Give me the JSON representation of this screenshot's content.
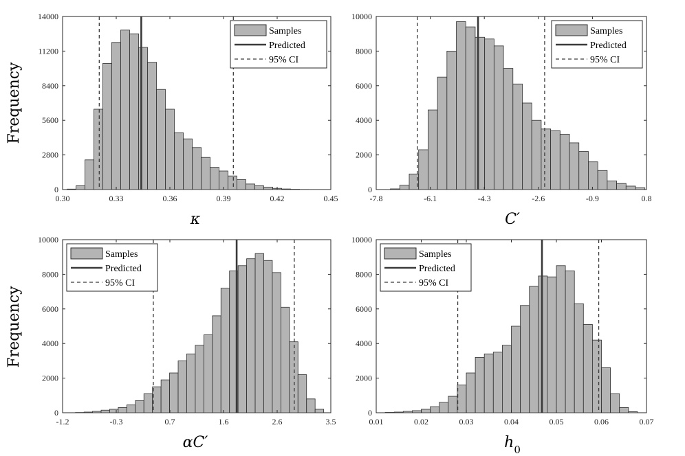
{
  "figure_ylabel": "Frequency",
  "legend_labels": {
    "samples": "Samples",
    "predicted": "Predicted",
    "ci": "95% CI"
  },
  "colors": {
    "bar": "#b4b4b4",
    "bar_edge": "#2d2d2d",
    "predicted_line": "#3a3a3a",
    "ci_line": "#3a3a3a"
  },
  "chart_data": [
    {
      "type": "bar",
      "xlabel": "κ",
      "xlim": [
        0.3,
        0.45
      ],
      "ylim": [
        0,
        14000
      ],
      "xticks": [
        "0.30",
        "0.33",
        "0.36",
        "0.39",
        "0.42",
        "0.45"
      ],
      "yticks": [
        "0",
        "2800",
        "5600",
        "8400",
        "11200",
        "14000"
      ],
      "ylabel": "Frequency",
      "legend_position": "top-right",
      "predicted": 0.344,
      "ci": [
        0.3205,
        0.3955
      ],
      "bins": [
        [
          0.3025,
          0.3075,
          40
        ],
        [
          0.3075,
          0.3125,
          300
        ],
        [
          0.3125,
          0.3175,
          2400
        ],
        [
          0.3175,
          0.3225,
          6500
        ],
        [
          0.3225,
          0.3275,
          10200
        ],
        [
          0.3275,
          0.3325,
          11900
        ],
        [
          0.3325,
          0.3375,
          12900
        ],
        [
          0.3375,
          0.3425,
          12600
        ],
        [
          0.3425,
          0.3475,
          11500
        ],
        [
          0.3475,
          0.3525,
          10300
        ],
        [
          0.3525,
          0.3575,
          8100
        ],
        [
          0.3575,
          0.3625,
          6500
        ],
        [
          0.3625,
          0.3675,
          4600
        ],
        [
          0.3675,
          0.3725,
          4100
        ],
        [
          0.3725,
          0.3775,
          3400
        ],
        [
          0.3775,
          0.3825,
          2600
        ],
        [
          0.3825,
          0.3875,
          1800
        ],
        [
          0.3875,
          0.3925,
          1500
        ],
        [
          0.3925,
          0.3975,
          1100
        ],
        [
          0.3975,
          0.4025,
          800
        ],
        [
          0.4025,
          0.4075,
          450
        ],
        [
          0.4075,
          0.4125,
          300
        ],
        [
          0.4125,
          0.4175,
          200
        ],
        [
          0.4175,
          0.4225,
          100
        ],
        [
          0.4225,
          0.4275,
          50
        ],
        [
          0.4275,
          0.4325,
          25
        ],
        [
          0.4325,
          0.4375,
          10
        ]
      ]
    },
    {
      "type": "bar",
      "xlabel": "C′",
      "xlim": [
        -7.8,
        0.8
      ],
      "ylim": [
        0,
        10000
      ],
      "xticks": [
        "-7.8",
        "-6.1",
        "-4.3",
        "-2.6",
        "-0.9",
        "0.8"
      ],
      "yticks": [
        "0",
        "2000",
        "4000",
        "6000",
        "8000",
        "10000"
      ],
      "legend_position": "top-right",
      "predicted": -4.56,
      "ci": [
        -6.49,
        -2.44
      ],
      "bins": [
        [
          -7.35,
          -7.05,
          40
        ],
        [
          -7.05,
          -6.75,
          250
        ],
        [
          -6.75,
          -6.45,
          900
        ],
        [
          -6.45,
          -6.15,
          2300
        ],
        [
          -6.15,
          -5.85,
          4600
        ],
        [
          -5.85,
          -5.55,
          6500
        ],
        [
          -5.55,
          -5.25,
          8000
        ],
        [
          -5.25,
          -4.95,
          9700
        ],
        [
          -4.95,
          -4.65,
          9400
        ],
        [
          -4.65,
          -4.35,
          8800
        ],
        [
          -4.35,
          -4.05,
          8700
        ],
        [
          -4.05,
          -3.75,
          8300
        ],
        [
          -3.75,
          -3.45,
          7000
        ],
        [
          -3.45,
          -3.15,
          6100
        ],
        [
          -3.15,
          -2.85,
          5000
        ],
        [
          -2.85,
          -2.55,
          4000
        ],
        [
          -2.55,
          -2.25,
          3500
        ],
        [
          -2.25,
          -1.95,
          3400
        ],
        [
          -1.95,
          -1.65,
          3200
        ],
        [
          -1.65,
          -1.35,
          2700
        ],
        [
          -1.35,
          -1.05,
          2200
        ],
        [
          -1.05,
          -0.75,
          1600
        ],
        [
          -0.75,
          -0.45,
          1100
        ],
        [
          -0.45,
          -0.15,
          500
        ],
        [
          -0.15,
          0.15,
          350
        ],
        [
          0.15,
          0.45,
          200
        ],
        [
          0.45,
          0.75,
          100
        ]
      ]
    },
    {
      "type": "bar",
      "xlabel": "αC′",
      "xlim": [
        -1.2,
        3.5
      ],
      "ylim": [
        0,
        10000
      ],
      "xticks": [
        "-1.2",
        "-0.3",
        "0.7",
        "1.6",
        "2.6",
        "3.5"
      ],
      "yticks": [
        "0",
        "2000",
        "4000",
        "6000",
        "8000",
        "10000"
      ],
      "ylabel": "Frequency",
      "legend_position": "top-left",
      "predicted": 1.85,
      "ci": [
        0.39,
        2.86
      ],
      "bins": [
        [
          -0.975,
          -0.825,
          15
        ],
        [
          -0.825,
          -0.675,
          40
        ],
        [
          -0.675,
          -0.525,
          80
        ],
        [
          -0.525,
          -0.375,
          150
        ],
        [
          -0.375,
          -0.225,
          200
        ],
        [
          -0.225,
          -0.075,
          300
        ],
        [
          -0.075,
          0.075,
          450
        ],
        [
          0.075,
          0.225,
          700
        ],
        [
          0.225,
          0.375,
          1100
        ],
        [
          0.375,
          0.525,
          1500
        ],
        [
          0.525,
          0.675,
          1900
        ],
        [
          0.675,
          0.825,
          2300
        ],
        [
          0.825,
          0.975,
          3000
        ],
        [
          0.975,
          1.125,
          3400
        ],
        [
          1.125,
          1.275,
          3900
        ],
        [
          1.275,
          1.425,
          4500
        ],
        [
          1.425,
          1.575,
          5600
        ],
        [
          1.575,
          1.725,
          7200
        ],
        [
          1.725,
          1.875,
          8200
        ],
        [
          1.875,
          2.025,
          8500
        ],
        [
          2.025,
          2.175,
          8900
        ],
        [
          2.175,
          2.325,
          9200
        ],
        [
          2.325,
          2.475,
          8800
        ],
        [
          2.475,
          2.625,
          8100
        ],
        [
          2.625,
          2.775,
          6100
        ],
        [
          2.775,
          2.925,
          4100
        ],
        [
          2.925,
          3.075,
          2200
        ],
        [
          3.075,
          3.225,
          800
        ],
        [
          3.225,
          3.375,
          200
        ]
      ]
    },
    {
      "type": "bar",
      "xlabel": "h0",
      "xlim": [
        0.01,
        0.07
      ],
      "ylim": [
        0,
        10000
      ],
      "xticks": [
        "0.01",
        "0.02",
        "0.03",
        "0.04",
        "0.05",
        "0.06",
        "0.07"
      ],
      "yticks": [
        "0",
        "2000",
        "4000",
        "6000",
        "8000",
        "10000"
      ],
      "legend_position": "top-left",
      "predicted": 0.0468,
      "ci": [
        0.0281,
        0.0594
      ],
      "bins": [
        [
          0.012,
          0.014,
          20
        ],
        [
          0.014,
          0.016,
          40
        ],
        [
          0.016,
          0.018,
          80
        ],
        [
          0.018,
          0.02,
          120
        ],
        [
          0.02,
          0.022,
          200
        ],
        [
          0.022,
          0.024,
          350
        ],
        [
          0.024,
          0.026,
          600
        ],
        [
          0.026,
          0.028,
          950
        ],
        [
          0.028,
          0.03,
          1600
        ],
        [
          0.03,
          0.032,
          2300
        ],
        [
          0.032,
          0.034,
          3200
        ],
        [
          0.034,
          0.036,
          3400
        ],
        [
          0.036,
          0.038,
          3500
        ],
        [
          0.038,
          0.04,
          3900
        ],
        [
          0.04,
          0.042,
          5000
        ],
        [
          0.042,
          0.044,
          6200
        ],
        [
          0.044,
          0.046,
          7300
        ],
        [
          0.046,
          0.048,
          7900
        ],
        [
          0.048,
          0.05,
          7850
        ],
        [
          0.05,
          0.052,
          8500
        ],
        [
          0.052,
          0.054,
          8200
        ],
        [
          0.054,
          0.056,
          6300
        ],
        [
          0.056,
          0.058,
          5100
        ],
        [
          0.058,
          0.06,
          4200
        ],
        [
          0.06,
          0.062,
          2600
        ],
        [
          0.062,
          0.064,
          1100
        ],
        [
          0.064,
          0.066,
          300
        ],
        [
          0.066,
          0.068,
          60
        ]
      ]
    }
  ]
}
